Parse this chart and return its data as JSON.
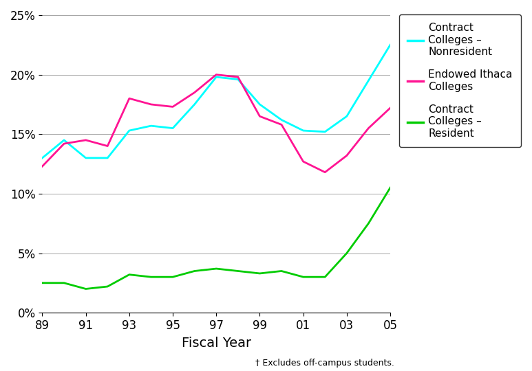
{
  "years": [
    89,
    90,
    91,
    92,
    93,
    94,
    95,
    96,
    97,
    98,
    99,
    100,
    101,
    102,
    103,
    104,
    105
  ],
  "x_labels": [
    "89",
    "91",
    "93",
    "95",
    "97",
    "99",
    "01",
    "03",
    "05"
  ],
  "x_ticks": [
    89,
    91,
    93,
    95,
    97,
    99,
    101,
    103,
    105
  ],
  "contract_nonresident": [
    13.0,
    14.5,
    13.0,
    13.0,
    15.3,
    15.7,
    15.5,
    17.5,
    19.8,
    19.6,
    17.5,
    16.2,
    15.3,
    15.2,
    16.5,
    19.5,
    22.5
  ],
  "endowed_ithaca": [
    12.3,
    14.2,
    14.5,
    14.0,
    18.0,
    17.5,
    17.3,
    18.5,
    20.0,
    19.8,
    16.5,
    15.8,
    12.7,
    11.8,
    13.2,
    15.5,
    17.2
  ],
  "contract_resident": [
    2.5,
    2.5,
    2.0,
    2.2,
    3.2,
    3.0,
    3.0,
    3.5,
    3.7,
    3.5,
    3.3,
    3.5,
    3.0,
    3.0,
    5.0,
    7.5,
    10.5
  ],
  "color_nonresident": "#00FFFF",
  "color_endowed": "#FF1493",
  "color_resident": "#00CC00",
  "xlabel": "Fiscal Year",
  "footnote": "† Excludes off-campus students.",
  "ylim": [
    0,
    25
  ],
  "yticks": [
    0,
    5,
    10,
    15,
    20,
    25
  ],
  "ytick_labels": [
    "0%",
    "5%",
    "10%",
    "15%",
    "20%",
    "25%"
  ],
  "legend_labels": [
    "Contract\nColleges –\nNonresident",
    "Endowed Ithaca\nColleges",
    "Contract\nColleges –\nResident"
  ],
  "legend_colors": [
    "#00FFFF",
    "#FF1493",
    "#00CC00"
  ],
  "line_width": 2.0
}
